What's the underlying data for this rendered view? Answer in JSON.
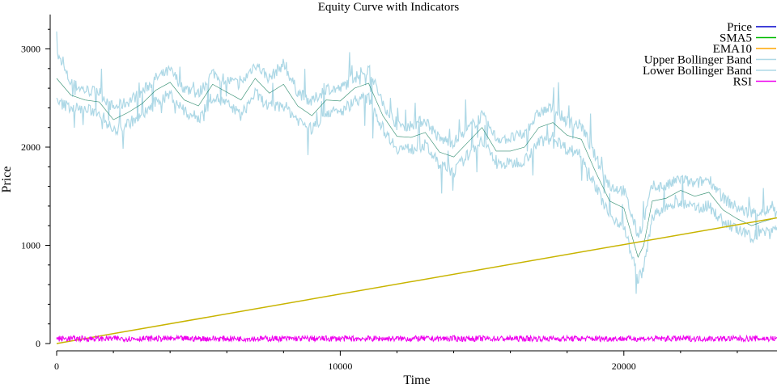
{
  "chart_data": {
    "type": "line",
    "title": "Equity Curve with Indicators",
    "xlabel": "Time",
    "ylabel": "Price",
    "xlim": [
      0,
      25400
    ],
    "ylim": [
      0,
      3350
    ],
    "x_ticks": [
      0,
      10000,
      20000
    ],
    "y_ticks": [
      0,
      1000,
      2000,
      3000
    ],
    "x_minor_step": 2000,
    "y_minor_step": 200,
    "legend_position": "top-right",
    "grid": false,
    "series": [
      {
        "name": "Price",
        "color": "#0000cc",
        "x": [
          0,
          500,
          1000,
          1500,
          2000,
          2500,
          3000,
          3500,
          4000,
          4500,
          5000,
          5500,
          6000,
          6500,
          7000,
          7500,
          8000,
          8500,
          9000,
          9500,
          10000,
          10500,
          11000,
          11500,
          12000,
          12500,
          13000,
          13500,
          14000,
          14500,
          15000,
          15500,
          16000,
          16500,
          17000,
          17500,
          18000,
          18500,
          19000,
          19500,
          20000,
          20500,
          20700,
          21000,
          21500,
          22000,
          22500,
          23000,
          23500,
          24000,
          24500,
          25000,
          25400
        ],
        "y": [
          2700,
          2530,
          2480,
          2460,
          2280,
          2350,
          2440,
          2580,
          2660,
          2480,
          2420,
          2640,
          2560,
          2480,
          2700,
          2550,
          2640,
          2420,
          2320,
          2480,
          2470,
          2600,
          2650,
          2320,
          2110,
          2100,
          2150,
          1950,
          1900,
          2050,
          2200,
          1960,
          1960,
          2000,
          2200,
          2250,
          2120,
          2080,
          1750,
          1450,
          1380,
          880,
          1000,
          1450,
          1480,
          1560,
          1500,
          1540,
          1360,
          1270,
          1200,
          1250,
          1280
        ]
      },
      {
        "name": "SMA5",
        "color": "#00bb00",
        "x": [
          0,
          500,
          1000,
          1500,
          2000,
          2500,
          3000,
          3500,
          4000,
          4500,
          5000,
          5500,
          6000,
          6500,
          7000,
          7500,
          8000,
          8500,
          9000,
          9500,
          10000,
          10500,
          11000,
          11500,
          12000,
          12500,
          13000,
          13500,
          14000,
          14500,
          15000,
          15500,
          16000,
          16500,
          17000,
          17500,
          18000,
          18500,
          19000,
          19500,
          20000,
          20500,
          20700,
          21000,
          21500,
          22000,
          22500,
          23000,
          23500,
          24000,
          24500,
          25000,
          25400
        ],
        "y": [
          2700,
          2530,
          2480,
          2460,
          2280,
          2350,
          2440,
          2580,
          2660,
          2480,
          2420,
          2640,
          2560,
          2480,
          2700,
          2550,
          2640,
          2420,
          2320,
          2480,
          2470,
          2600,
          2650,
          2320,
          2110,
          2100,
          2150,
          1950,
          1900,
          2050,
          2200,
          1960,
          1960,
          2000,
          2200,
          2250,
          2120,
          2080,
          1750,
          1450,
          1380,
          880,
          1000,
          1450,
          1480,
          1560,
          1500,
          1540,
          1360,
          1270,
          1200,
          1250,
          1280
        ]
      },
      {
        "name": "EMA10",
        "color": "#ffa500",
        "x": [
          0,
          25400
        ],
        "y": [
          0,
          1280
        ]
      },
      {
        "name": "Upper Bollinger Band",
        "color": "#add8e6",
        "x": [
          0,
          500,
          1000,
          1500,
          2000,
          2500,
          3000,
          3500,
          4000,
          4500,
          5000,
          5500,
          6000,
          6500,
          7000,
          7500,
          8000,
          8500,
          9000,
          9500,
          10000,
          10500,
          11000,
          11500,
          12000,
          12500,
          13000,
          13500,
          14000,
          14500,
          15000,
          15500,
          16000,
          16500,
          17000,
          17500,
          18000,
          18500,
          19000,
          19500,
          20000,
          20500,
          20700,
          21000,
          21500,
          22000,
          22500,
          23000,
          23500,
          24000,
          24500,
          25000,
          25400
        ],
        "y": [
          2950,
          2650,
          2580,
          2560,
          2400,
          2460,
          2560,
          2700,
          2780,
          2600,
          2540,
          2760,
          2680,
          2640,
          2850,
          2700,
          2850,
          2560,
          2460,
          2600,
          2590,
          2720,
          2800,
          2450,
          2230,
          2220,
          2280,
          2080,
          2050,
          2180,
          2320,
          2090,
          2090,
          2130,
          2350,
          2400,
          2260,
          2220,
          1900,
          1600,
          1560,
          1100,
          1250,
          1600,
          1600,
          1680,
          1620,
          1680,
          1480,
          1380,
          1320,
          1350,
          1380
        ]
      },
      {
        "name": "Lower Bollinger Band",
        "color": "#add8e6",
        "x": [
          0,
          500,
          1000,
          1500,
          2000,
          2500,
          3000,
          3500,
          4000,
          4500,
          5000,
          5500,
          6000,
          6500,
          7000,
          7500,
          8000,
          8500,
          9000,
          9500,
          10000,
          10500,
          11000,
          11500,
          12000,
          12500,
          13000,
          13500,
          14000,
          14500,
          15000,
          15500,
          16000,
          16500,
          17000,
          17500,
          18000,
          18500,
          19000,
          19500,
          20000,
          20500,
          20700,
          21000,
          21500,
          22000,
          22500,
          23000,
          23500,
          24000,
          24500,
          25000,
          25400
        ],
        "y": [
          2450,
          2410,
          2380,
          2360,
          2160,
          2240,
          2320,
          2460,
          2540,
          2360,
          2300,
          2520,
          2440,
          2320,
          2550,
          2400,
          2430,
          2280,
          2180,
          2360,
          2350,
          2480,
          2500,
          2190,
          1990,
          1980,
          2020,
          1820,
          1750,
          1920,
          2080,
          1830,
          1830,
          1870,
          2050,
          2100,
          1980,
          1940,
          1600,
          1300,
          1200,
          660,
          750,
          1300,
          1360,
          1440,
          1380,
          1400,
          1240,
          1160,
          1080,
          1150,
          1180
        ]
      },
      {
        "name": "RSI",
        "color": "#ee00ee",
        "x": [
          0,
          25400
        ],
        "y": [
          20,
          80
        ]
      }
    ]
  }
}
